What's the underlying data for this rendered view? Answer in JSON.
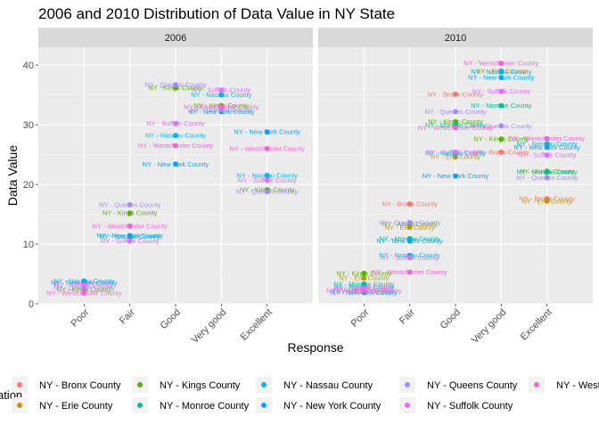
{
  "chart_data": {
    "type": "scatter",
    "title": "2006 and 2010 Distribution of Data Value in NY State",
    "xlabel": "Response",
    "ylabel": "Data Value",
    "legend_title": "Location",
    "legend_position": "bottom",
    "grid": true,
    "panels": [
      "2006",
      "2010"
    ],
    "categories": [
      "Poor",
      "Fair",
      "Good",
      "Very good",
      "Excellent"
    ],
    "ylim": [
      0,
      43
    ],
    "yticks": [
      0,
      10,
      20,
      30,
      40
    ],
    "series": [
      {
        "name": "NY - Bronx County",
        "color": "#F8766D",
        "values": {
          "2006": [
            null,
            null,
            null,
            null,
            null
          ],
          "2010": [
            2.0,
            16.7,
            35.1,
            25.4,
            17.6
          ]
        }
      },
      {
        "name": "NY - Erie County",
        "color": "#C49A00",
        "values": {
          "2006": [
            null,
            null,
            null,
            null,
            null
          ],
          "2010": [
            4.3,
            12.8,
            24.6,
            39.0,
            17.2
          ]
        }
      },
      {
        "name": "NY - Kings County",
        "color": "#53B400",
        "values": {
          "2006": [
            2.4,
            15.2,
            36.2,
            33.2,
            19.1
          ],
          "2010": [
            5.1,
            13.4,
            30.5,
            27.6,
            22.2
          ]
        }
      },
      {
        "name": "NY - Monroe County",
        "color": "#00C094",
        "values": {
          "2006": [
            null,
            null,
            null,
            null,
            null
          ],
          "2010": [
            3.3,
            10.9,
            29.9,
            33.2,
            22.1
          ]
        }
      },
      {
        "name": "NY - Nassau County",
        "color": "#00B6EB",
        "values": {
          "2006": [
            3.8,
            11.3,
            28.2,
            35.0,
            21.5
          ],
          "2010": [
            2.8,
            8.1,
            25.2,
            38.9,
            26.8
          ]
        }
      },
      {
        "name": "NY - New York County",
        "color": "#06A4FF",
        "values": {
          "2006": [
            3.5,
            11.4,
            23.4,
            32.2,
            28.8
          ],
          "2010": [
            1.9,
            10.5,
            21.4,
            37.9,
            26.2
          ]
        }
      },
      {
        "name": "NY - Queens County",
        "color": "#A58AFF",
        "values": {
          "2006": [
            2.7,
            16.6,
            36.7,
            32.5,
            18.8
          ],
          "2010": [
            2.3,
            13.6,
            32.2,
            29.8,
            21.1
          ]
        }
      },
      {
        "name": "NY - Suffolk County",
        "color": "#DF70F8",
        "values": {
          "2006": [
            3.1,
            10.5,
            30.2,
            35.8,
            20.7
          ],
          "2010": [
            2.6,
            7.7,
            25.4,
            35.6,
            24.9
          ]
        }
      },
      {
        "name": "NY - Westchester County",
        "color": "#FB61D7",
        "values": {
          "2006": [
            1.8,
            13.0,
            26.5,
            33.0,
            26.0
          ],
          "2010": [
            2.2,
            5.3,
            29.5,
            40.3,
            27.7
          ]
        }
      }
    ]
  }
}
